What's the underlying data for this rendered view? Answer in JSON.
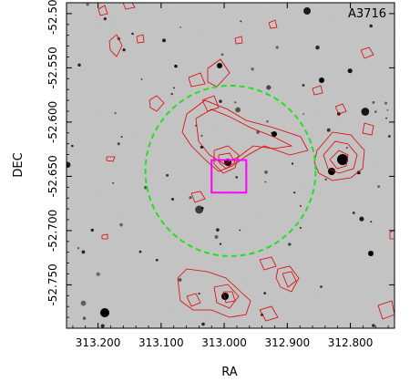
{
  "chart_data": {
    "type": "scatter",
    "title": "A3716",
    "xlabel": "RA",
    "ylabel": "DEC",
    "xlim": [
      313.25,
      312.73
    ],
    "ylim": [
      -52.79,
      -52.49
    ],
    "x_ticks": [
      {
        "value": 313.2,
        "label": "313.200"
      },
      {
        "value": 313.1,
        "label": "313.100"
      },
      {
        "value": 313.0,
        "label": "313.000"
      },
      {
        "value": 312.9,
        "label": "312.900"
      },
      {
        "value": 312.8,
        "label": "312.800"
      }
    ],
    "y_ticks": [
      {
        "value": -52.5,
        "label": "-52.500"
      },
      {
        "value": -52.55,
        "label": "-52.550"
      },
      {
        "value": -52.6,
        "label": "-52.600"
      },
      {
        "value": -52.65,
        "label": "-52.650"
      },
      {
        "value": -52.7,
        "label": "-52.700"
      },
      {
        "value": -52.75,
        "label": "-52.750"
      }
    ],
    "background": "greyscale optical image with scattered stars and galaxies",
    "overlays": {
      "circle": {
        "ra_center": 312.99,
        "dec_center": -52.645,
        "ra_radius": 0.135,
        "color": "#22e022",
        "style": "dashed"
      },
      "box": {
        "ra_min": 312.965,
        "ra_max": 313.02,
        "dec_min": -52.665,
        "dec_max": -52.635,
        "color": "#ff00ff"
      },
      "contours_color": "#e00000"
    }
  },
  "colors": {
    "contour": "#e00000",
    "circle": "#22e022",
    "box": "#ff00ff"
  }
}
